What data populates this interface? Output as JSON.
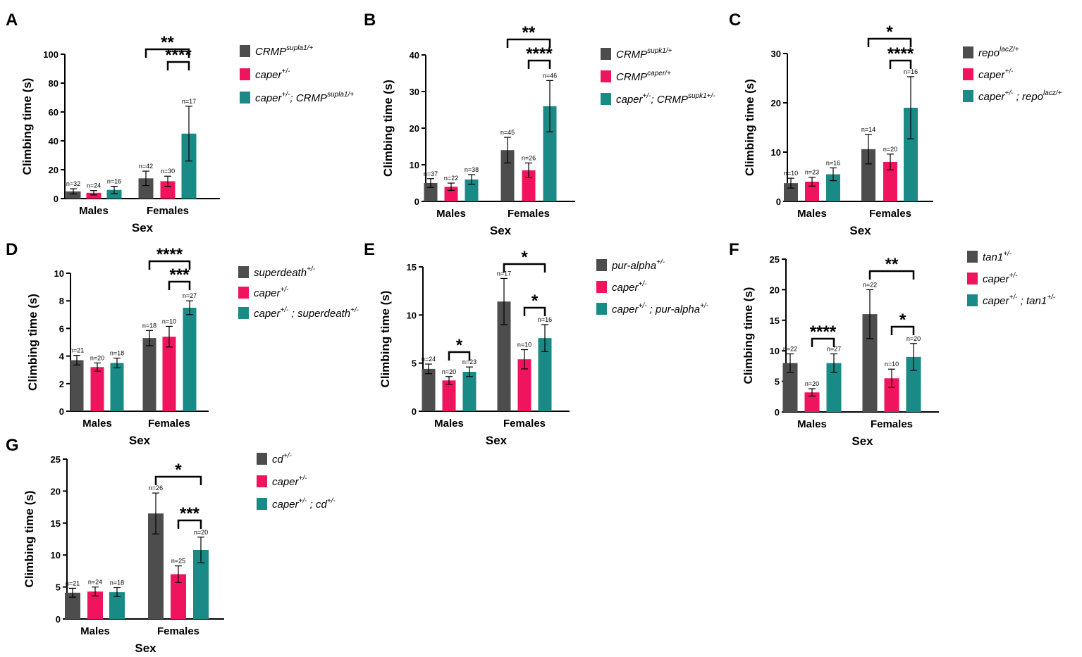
{
  "colors": {
    "grey": "#4d4d4d",
    "pink": "#f0145f",
    "teal": "#1a8a86"
  },
  "chart_data": [
    {
      "panel": "A",
      "type": "bar",
      "xlabel": "Sex",
      "ylabel": "Climbing time (s)",
      "ylim": [
        0,
        100
      ],
      "yticks": [
        "0",
        "20",
        "40",
        "60",
        "80",
        "100"
      ],
      "categories": [
        "Males",
        "Females"
      ],
      "series": [
        {
          "name": "CRMP",
          "sup": "supla1/+",
          "pre": "",
          "presup": "",
          "color": "grey",
          "values": [
            5,
            14
          ],
          "errors": [
            1.8,
            5
          ],
          "ns": [
            "n=32",
            "n=42"
          ]
        },
        {
          "name": "caper",
          "sup": "+/-",
          "pre": "",
          "presup": "",
          "color": "pink",
          "values": [
            4,
            12
          ],
          "errors": [
            1.5,
            3.5
          ],
          "ns": [
            "n=24",
            "n=30"
          ]
        },
        {
          "name": "; CRMP",
          "sup": "supla1/+",
          "pre": "caper",
          "presup": "+/-",
          "color": "teal",
          "values": [
            6,
            45
          ],
          "errors": [
            2.5,
            19
          ],
          "ns": [
            "n=16",
            "n=17"
          ]
        }
      ],
      "significance": [
        {
          "from": 0,
          "to": 2,
          "stars": "**"
        },
        {
          "from": 1,
          "to": 2,
          "stars": "****"
        }
      ]
    },
    {
      "panel": "B",
      "type": "bar",
      "xlabel": "Sex",
      "ylabel": "Climbing time (s)",
      "ylim": [
        0,
        40
      ],
      "yticks": [
        "0",
        "10",
        "20",
        "30",
        "40"
      ],
      "categories": [
        "Males",
        "Females"
      ],
      "series": [
        {
          "name": "CRMP",
          "sup": "supk1/+",
          "pre": "",
          "presup": "",
          "color": "grey",
          "values": [
            5,
            14
          ],
          "errors": [
            1.2,
            3.5
          ],
          "ns": [
            "n=37",
            "n=45"
          ]
        },
        {
          "name": "CRMP",
          "sup": "caper/+",
          "pre": "",
          "presup": "",
          "color": "pink",
          "values": [
            4,
            8.5
          ],
          "errors": [
            1,
            2
          ],
          "ns": [
            "n=22",
            "n=26"
          ]
        },
        {
          "name": "; CRMP",
          "sup": "supk1+/-",
          "pre": "caper",
          "presup": "+/-",
          "color": "teal",
          "values": [
            6,
            26
          ],
          "errors": [
            1.3,
            7
          ],
          "ns": [
            "n=38",
            "n=46"
          ]
        }
      ],
      "significance": [
        {
          "from": 0,
          "to": 2,
          "stars": "**"
        },
        {
          "from": 1,
          "to": 2,
          "stars": "****"
        }
      ]
    },
    {
      "panel": "C",
      "type": "bar",
      "xlabel": "Sex",
      "ylabel": "Climbing time (s)",
      "ylim": [
        0,
        30
      ],
      "yticks": [
        "0",
        "10",
        "20",
        "30"
      ],
      "categories": [
        "Males",
        "Females"
      ],
      "series": [
        {
          "name": "repo",
          "sup": "lacZ/+",
          "pre": "",
          "presup": "",
          "color": "grey",
          "values": [
            3.7,
            10.6
          ],
          "errors": [
            1,
            3
          ],
          "ns": [
            "n=10",
            "n=14"
          ]
        },
        {
          "name": "caper",
          "sup": "+/-",
          "pre": "",
          "presup": "",
          "color": "pink",
          "values": [
            4,
            8
          ],
          "errors": [
            0.9,
            1.6
          ],
          "ns": [
            "n=23",
            "n=20"
          ]
        },
        {
          "name": " ; repo",
          "sup": "lacz/+",
          "pre": "caper",
          "presup": "+/-",
          "color": "teal",
          "values": [
            5.5,
            19
          ],
          "errors": [
            1.3,
            6.3
          ],
          "ns": [
            "n=16",
            "n=16"
          ]
        }
      ],
      "significance": [
        {
          "from": 0,
          "to": 2,
          "stars": "*"
        },
        {
          "from": 1,
          "to": 2,
          "stars": "****"
        }
      ]
    },
    {
      "panel": "D",
      "type": "bar",
      "xlabel": "Sex",
      "ylabel": "Climbing time (s)",
      "ylim": [
        0,
        10
      ],
      "yticks": [
        "0",
        "2",
        "4",
        "6",
        "8",
        "10"
      ],
      "categories": [
        "Males",
        "Females"
      ],
      "series": [
        {
          "name": "superdeath",
          "sup": "+/-",
          "pre": "",
          "presup": "",
          "color": "grey",
          "values": [
            3.7,
            5.3
          ],
          "errors": [
            0.35,
            0.55
          ],
          "ns": [
            "n=21",
            "n=18"
          ]
        },
        {
          "name": "caper",
          "sup": "+/-",
          "pre": "",
          "presup": "",
          "color": "pink",
          "values": [
            3.2,
            5.4
          ],
          "errors": [
            0.3,
            0.75
          ],
          "ns": [
            "n=20",
            "n=10"
          ]
        },
        {
          "name": " ; superdeath",
          "sup": "+/-",
          "pre": "caper",
          "presup": "+/-",
          "color": "teal",
          "values": [
            3.5,
            7.5
          ],
          "errors": [
            0.35,
            0.5
          ],
          "ns": [
            "n=18",
            "n=27"
          ]
        }
      ],
      "significance": [
        {
          "from": 0,
          "to": 2,
          "stars": "****"
        },
        {
          "from": 1,
          "to": 2,
          "stars": "***"
        }
      ]
    },
    {
      "panel": "E",
      "type": "bar",
      "xlabel": "Sex",
      "ylabel": "Climbing time (s)",
      "ylim": [
        0,
        15
      ],
      "yticks": [
        "0",
        "5",
        "10",
        "15"
      ],
      "categories": [
        "Males",
        "Females"
      ],
      "series": [
        {
          "name": "pur-alpha",
          "sup": "+/-",
          "pre": "",
          "presup": "",
          "color": "grey",
          "values": [
            4.4,
            11.4
          ],
          "errors": [
            0.5,
            2.4
          ],
          "ns": [
            "n=24",
            "n=17"
          ]
        },
        {
          "name": "caper",
          "sup": "+/-",
          "pre": "",
          "presup": "",
          "color": "pink",
          "values": [
            3.2,
            5.4
          ],
          "errors": [
            0.4,
            1
          ],
          "ns": [
            "n=20",
            "n=10"
          ]
        },
        {
          "name": " ; pur-alpha",
          "sup": "+/-",
          "pre": "caper",
          "presup": "+/-",
          "color": "teal",
          "values": [
            4.1,
            7.6
          ],
          "errors": [
            0.5,
            1.4
          ],
          "ns": [
            "n=23",
            "n=16"
          ]
        }
      ],
      "significance": [
        {
          "from": 1,
          "to": 2,
          "cat": 0,
          "stars": "*"
        },
        {
          "from": 0,
          "to": 2,
          "stars": "*"
        },
        {
          "from": 1,
          "to": 2,
          "stars": "*"
        }
      ]
    },
    {
      "panel": "F",
      "type": "bar",
      "xlabel": "Sex",
      "ylabel": "Climbing time (s)",
      "ylim": [
        0,
        25
      ],
      "yticks": [
        "0",
        "5",
        "10",
        "15",
        "20",
        "25"
      ],
      "categories": [
        "Males",
        "Females"
      ],
      "series": [
        {
          "name": "tan1",
          "sup": "+/-",
          "pre": "",
          "presup": "",
          "color": "grey",
          "values": [
            8,
            16
          ],
          "errors": [
            1.5,
            4
          ],
          "ns": [
            "n=22",
            "n=22"
          ]
        },
        {
          "name": "caper",
          "sup": "+/-",
          "pre": "",
          "presup": "",
          "color": "pink",
          "values": [
            3.2,
            5.5
          ],
          "errors": [
            0.6,
            1.5
          ],
          "ns": [
            "n=20",
            "n=10"
          ]
        },
        {
          "name": " ; tan1",
          "sup": "+/-",
          "pre": "caper",
          "presup": "+/-",
          "color": "teal",
          "values": [
            8,
            9
          ],
          "errors": [
            1.5,
            2.2
          ],
          "ns": [
            "n=27",
            "n=20"
          ]
        }
      ],
      "significance": [
        {
          "from": 1,
          "to": 2,
          "cat": 0,
          "stars": "****"
        },
        {
          "from": 0,
          "to": 2,
          "stars": "**"
        },
        {
          "from": 1,
          "to": 2,
          "stars": "*"
        }
      ]
    },
    {
      "panel": "G",
      "type": "bar",
      "xlabel": "Sex",
      "ylabel": "Climbing time (s)",
      "ylim": [
        0,
        25
      ],
      "yticks": [
        "0",
        "5",
        "10",
        "15",
        "20",
        "25"
      ],
      "categories": [
        "Males",
        "Females"
      ],
      "series": [
        {
          "name": "cd",
          "sup": "+/-",
          "pre": "",
          "presup": "",
          "color": "grey",
          "values": [
            4.1,
            16.5
          ],
          "errors": [
            0.7,
            3.2
          ],
          "ns": [
            "n=21",
            "n=26"
          ]
        },
        {
          "name": "caper",
          "sup": "+/-",
          "pre": "",
          "presup": "",
          "color": "pink",
          "values": [
            4.3,
            7
          ],
          "errors": [
            0.7,
            1.3
          ],
          "ns": [
            "n=24",
            "n=25"
          ]
        },
        {
          "name": " ; cd",
          "sup": "+/-",
          "pre": "caper",
          "presup": "+/-",
          "color": "teal",
          "values": [
            4.2,
            10.8
          ],
          "errors": [
            0.7,
            2
          ],
          "ns": [
            "n=18",
            "n=20"
          ]
        }
      ],
      "significance": [
        {
          "from": 0,
          "to": 2,
          "stars": "*"
        },
        {
          "from": 1,
          "to": 2,
          "stars": "***"
        }
      ]
    }
  ]
}
